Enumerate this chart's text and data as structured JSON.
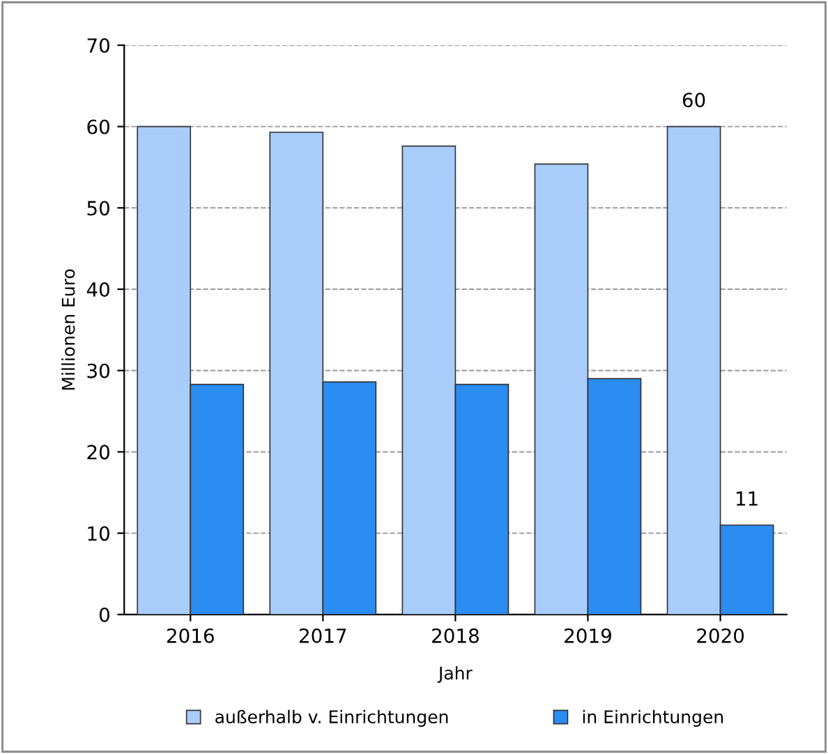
{
  "chart_data": {
    "type": "bar",
    "xlabel": "Jahr",
    "ylabel": "Millionen Euro",
    "categories": [
      "2016",
      "2017",
      "2018",
      "2019",
      "2020"
    ],
    "series": [
      {
        "name": "außerhalb v. Einrichtungen",
        "color": "#a8cdfb",
        "values": [
          60.0,
          59.3,
          57.6,
          55.4,
          60
        ],
        "value_labels": [
          null,
          null,
          null,
          null,
          "60"
        ]
      },
      {
        "name": "in Einrichtungen",
        "color": "#2b8cf2",
        "values": [
          28.3,
          28.6,
          28.3,
          29.0,
          11
        ],
        "value_labels": [
          null,
          null,
          null,
          null,
          "11"
        ]
      }
    ],
    "ylim": [
      0,
      70
    ],
    "yticks": [
      0,
      10,
      20,
      30,
      40,
      50,
      60,
      70
    ],
    "grid": "y",
    "legend": "bottom"
  }
}
